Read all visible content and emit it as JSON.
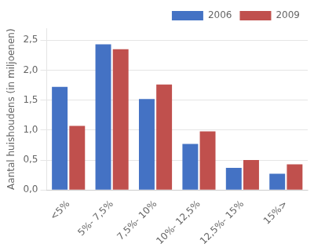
{
  "chart_data": {
    "type": "bar",
    "categories": [
      "<5%",
      "5%- 7,5%",
      "7,5%- 10%",
      "10%- 12,5%",
      "12,5%- 15%",
      "15%>"
    ],
    "series": [
      {
        "name": "2006",
        "color": "#4472C4",
        "values": [
          1.72,
          2.43,
          1.52,
          0.77,
          0.37,
          0.27
        ]
      },
      {
        "name": "2009",
        "color": "#C0504D",
        "values": [
          1.07,
          2.35,
          1.76,
          0.98,
          0.5,
          0.43
        ]
      }
    ],
    "ylabel": "Aantal huishoudens (in miljoenen)",
    "ylim": [
      0,
      2.7
    ],
    "yticks": [
      {
        "value": 0.0,
        "label": "0,0"
      },
      {
        "value": 0.5,
        "label": "0,5"
      },
      {
        "value": 1.0,
        "label": "1,0"
      },
      {
        "value": 1.5,
        "label": "1,5"
      },
      {
        "value": 2.0,
        "label": "2,0"
      },
      {
        "value": 2.5,
        "label": "2,5"
      }
    ],
    "grid": true,
    "legend": "upper right"
  }
}
